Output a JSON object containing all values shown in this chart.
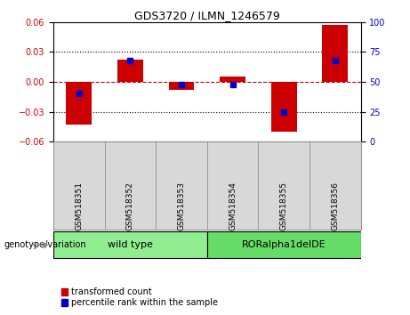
{
  "title": "GDS3720 / ILMN_1246579",
  "categories": [
    "GSM518351",
    "GSM518352",
    "GSM518353",
    "GSM518354",
    "GSM518355",
    "GSM518356"
  ],
  "red_values": [
    -0.043,
    0.022,
    -0.008,
    0.005,
    -0.05,
    0.057
  ],
  "blue_values_pct": [
    40,
    68,
    48,
    48,
    25,
    68
  ],
  "groups": [
    {
      "label": "wild type",
      "indices": [
        0,
        1,
        2
      ],
      "color": "#90EE90"
    },
    {
      "label": "RORalpha1delDE",
      "indices": [
        3,
        4,
        5
      ],
      "color": "#66DD66"
    }
  ],
  "group_label": "genotype/variation",
  "ylim_left": [
    -0.06,
    0.06
  ],
  "ylim_right": [
    0,
    100
  ],
  "left_ticks": [
    -0.06,
    -0.03,
    0,
    0.03,
    0.06
  ],
  "right_ticks": [
    0,
    25,
    50,
    75,
    100
  ],
  "red_color": "#CC0000",
  "blue_color": "#0000CC",
  "zero_line_color": "#CC0000",
  "bar_width": 0.5,
  "legend_red": "transformed count",
  "legend_blue": "percentile rank within the sample",
  "figsize": [
    4.61,
    3.54
  ],
  "dpi": 100
}
